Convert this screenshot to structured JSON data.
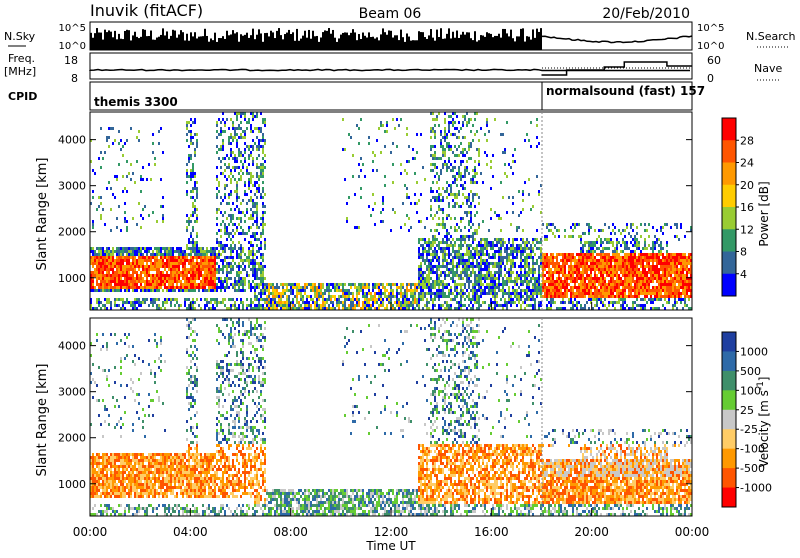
{
  "header": {
    "station": "Inuvik (fitACF)",
    "beam": "Beam 06",
    "date": "20/Feb/2010"
  },
  "top_panel": {
    "nsky_label": "N.Sky",
    "nsky_ticks": [
      "10^5",
      "10^0"
    ],
    "nsearch_label": "N.Search",
    "right_ticks": [
      "10^5",
      "10^0"
    ]
  },
  "freq_panel": {
    "freq_label": "Freq.",
    "freq_unit": "[MHz]",
    "left_ticks": [
      "18",
      "8"
    ],
    "nave_label": "Nave",
    "right_ticks": [
      "60",
      "0"
    ]
  },
  "cpid_panel": {
    "label": "CPID",
    "modes": [
      {
        "name": "themis 3300",
        "start_hour": 0
      },
      {
        "name": "normalsound (fast) 157",
        "start_hour": 18
      }
    ]
  },
  "chart_data": [
    {
      "type": "heatmap",
      "quantity": "power",
      "ylabel": "Slant Range [km]",
      "ylim": [
        300,
        4600
      ],
      "yticks": [
        "1000",
        "2000",
        "3000",
        "4000"
      ],
      "xlim_hours": [
        0,
        24
      ],
      "colorbar_label": "Power [dB]",
      "colorbar_ticks": [
        "28",
        "24",
        "20",
        "16",
        "12",
        "8",
        "4"
      ],
      "colorbar_colors": [
        "#ff0000",
        "#ff5500",
        "#ff9900",
        "#ffcc00",
        "#99cc33",
        "#339966",
        "#336699",
        "#0000ff"
      ]
    },
    {
      "type": "heatmap",
      "quantity": "velocity",
      "ylabel": "Slant Range [km]",
      "ylim": [
        300,
        4600
      ],
      "yticks": [
        "1000",
        "2000",
        "3000",
        "4000"
      ],
      "xlim_hours": [
        0,
        24
      ],
      "xlabel": "Time UT",
      "xticks": [
        "00:00",
        "04:00",
        "08:00",
        "12:00",
        "16:00",
        "20:00",
        "00:00"
      ],
      "colorbar_label": "Velocity [m s^-1]",
      "colorbar_ticks": [
        "1000",
        "500",
        "100",
        "25",
        "-25",
        "-100",
        "-500",
        "-1000"
      ],
      "colorbar_colors": [
        "#1f3fa0",
        "#2e6aa8",
        "#3f8f6a",
        "#66cc33",
        "#c8c8c8",
        "#ffcc66",
        "#ff9900",
        "#ff5500",
        "#ff0000"
      ]
    }
  ]
}
